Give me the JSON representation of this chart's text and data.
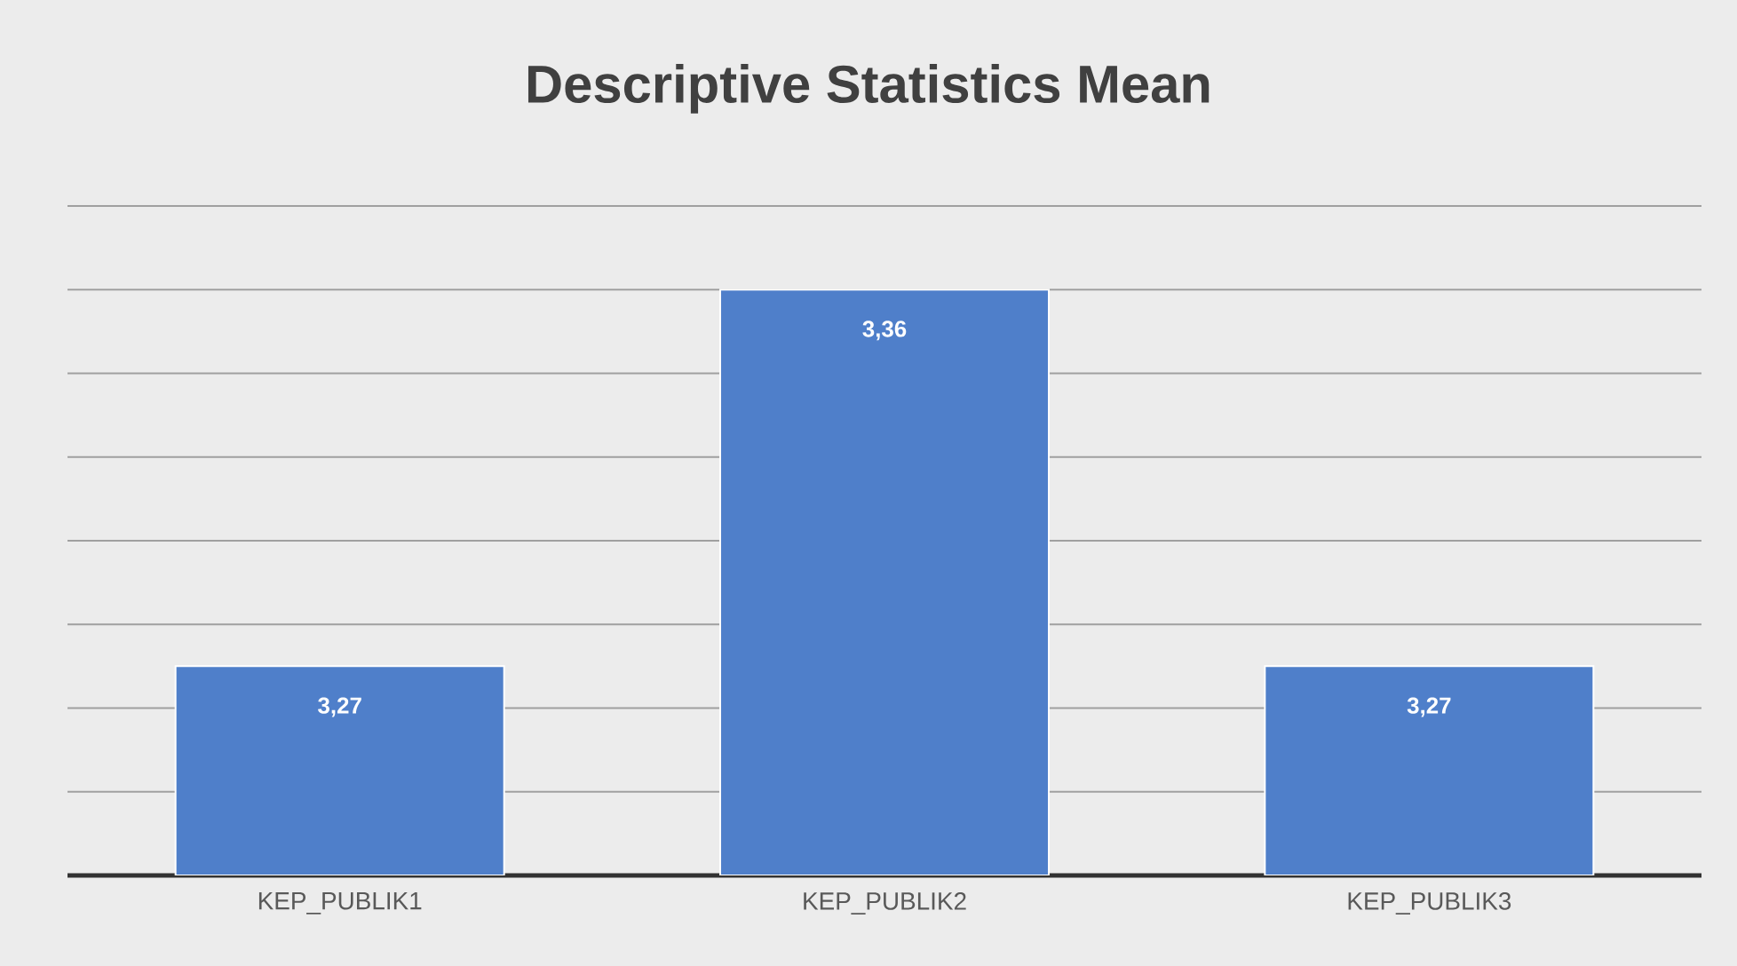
{
  "chart_data": {
    "type": "bar",
    "title": "Descriptive Statistics Mean",
    "categories": [
      "KEP_PUBLIK1",
      "KEP_PUBLIK2",
      "KEP_PUBLIK3"
    ],
    "values": [
      3.27,
      3.36,
      3.27
    ],
    "value_labels": [
      "3,27",
      "3,36",
      "3,27"
    ],
    "color": "#4f7fca",
    "ylim": [
      3.22,
      3.38
    ],
    "yticks": [
      {
        "value": 3.24,
        "label": null
      },
      {
        "value": 3.26,
        "label": null
      },
      {
        "value": 3.28,
        "label": null
      },
      {
        "value": 3.3,
        "label": null
      },
      {
        "value": 3.32,
        "label": null
      },
      {
        "value": 3.34,
        "label": null
      },
      {
        "value": 3.36,
        "label": null
      },
      {
        "value": 3.38,
        "label": null
      }
    ],
    "tick_labels": "x",
    "grid": "y"
  }
}
